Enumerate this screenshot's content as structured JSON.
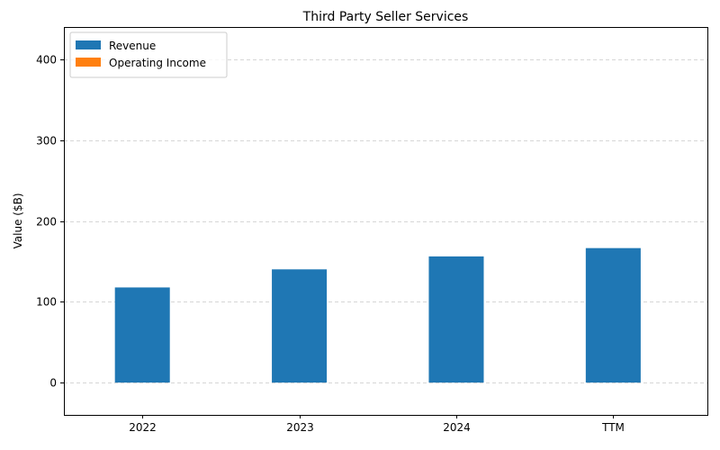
{
  "chart_data": {
    "type": "bar",
    "title": "Third Party Seller Services",
    "xlabel": "",
    "ylabel": "Value ($B)",
    "categories": [
      "2022",
      "2023",
      "2024",
      "TTM"
    ],
    "series": [
      {
        "name": "Revenue",
        "values": [
          117.7,
          140.1,
          156.1,
          166.4
        ],
        "color": "#1f77b4"
      },
      {
        "name": "Operating Income",
        "values": [
          0,
          0,
          0,
          0
        ],
        "color": "#ff7f0e"
      }
    ],
    "ylim": [
      -40,
      440
    ],
    "yticks": [
      0,
      100,
      200,
      300,
      400
    ],
    "grid": "y-dashed",
    "legend_position": "top-left"
  }
}
